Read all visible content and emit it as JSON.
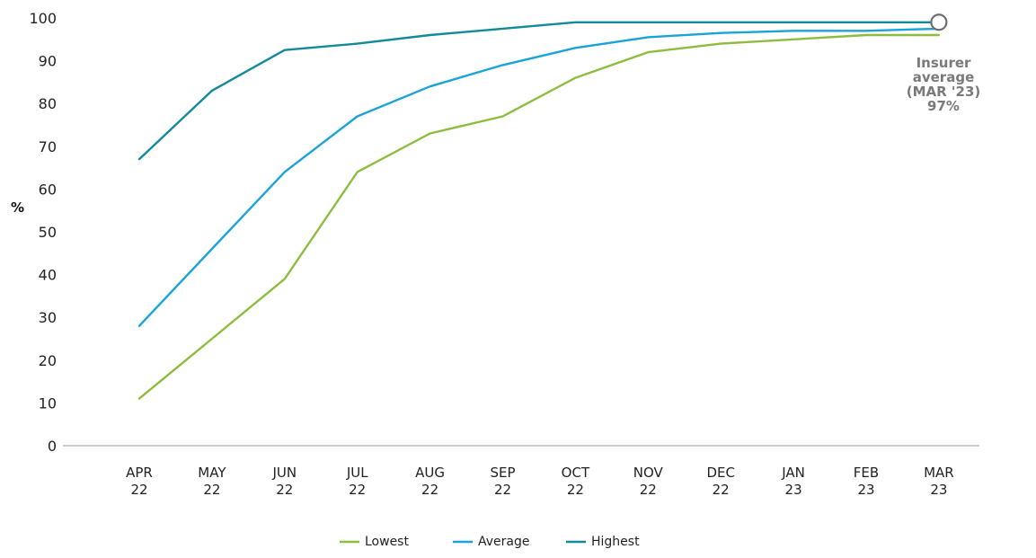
{
  "chart_data": {
    "type": "line",
    "title": "",
    "xlabel": "",
    "ylabel": "%",
    "ylim": [
      0,
      100
    ],
    "yticks": [
      0,
      10,
      20,
      30,
      40,
      50,
      60,
      70,
      80,
      90,
      100
    ],
    "grid": false,
    "legend_position": "bottom-center",
    "categories": [
      [
        "APR",
        "22"
      ],
      [
        "MAY",
        "22"
      ],
      [
        "JUN",
        "22"
      ],
      [
        "JUL",
        "22"
      ],
      [
        "AUG",
        "22"
      ],
      [
        "SEP",
        "22"
      ],
      [
        "OCT",
        "22"
      ],
      [
        "NOV",
        "22"
      ],
      [
        "DEC",
        "22"
      ],
      [
        "JAN",
        "23"
      ],
      [
        "FEB",
        "23"
      ],
      [
        "MAR",
        "23"
      ]
    ],
    "series": [
      {
        "name": "Lowest",
        "color": "#8cbd3f",
        "values": [
          11,
          25,
          39,
          64,
          73,
          77,
          86,
          92,
          94,
          95,
          96,
          96
        ]
      },
      {
        "name": "Average",
        "color": "#1aa3d9",
        "values": [
          28,
          46,
          64,
          77,
          84,
          89,
          93,
          95.5,
          96.5,
          97,
          97,
          97.5
        ]
      },
      {
        "name": "Highest",
        "color": "#138a9a",
        "values": [
          67,
          83,
          92.5,
          94,
          96,
          97.5,
          99,
          99,
          99,
          99,
          99,
          99
        ]
      }
    ],
    "annotation": {
      "lines": [
        "Insurer",
        "average",
        "(MAR '23)",
        "97%"
      ],
      "marker": "open-circle",
      "category_index": 11,
      "value": 99
    }
  }
}
